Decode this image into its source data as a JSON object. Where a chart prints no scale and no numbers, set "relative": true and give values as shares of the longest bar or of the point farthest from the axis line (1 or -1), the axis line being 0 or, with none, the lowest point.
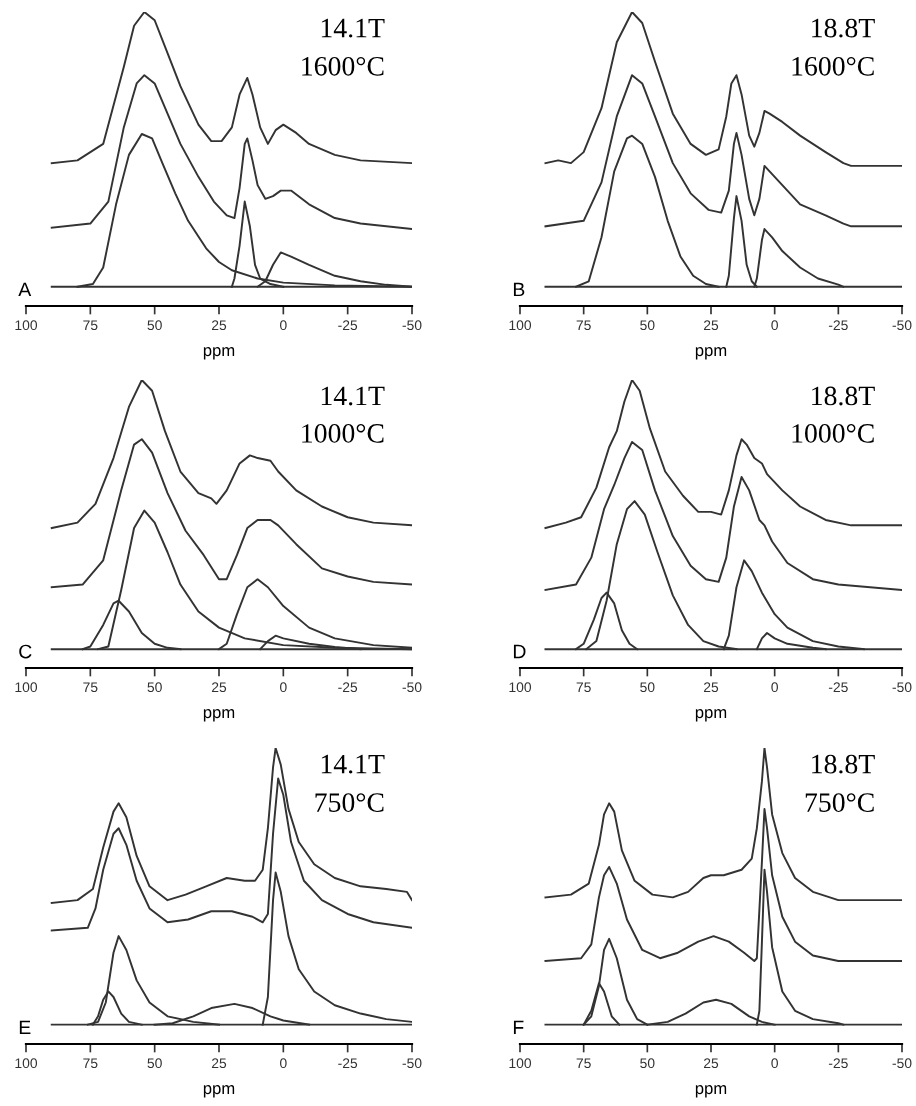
{
  "chart_data": [
    {
      "type": "line",
      "relative": true,
      "xlabel": "ppm",
      "xlim": [
        100,
        -50
      ],
      "xticks": [
        100,
        75,
        50,
        25,
        0,
        -25,
        -50
      ],
      "grid": false,
      "legend": false,
      "marker": "none",
      "line_style": "solid",
      "annotations": [
        "A",
        "14.1T",
        "1600°C"
      ],
      "series": [
        {
          "color": "#333333",
          "x": [
            90,
            80,
            70,
            62,
            58,
            54,
            50,
            45,
            40,
            33,
            28,
            24,
            20,
            17,
            14,
            12,
            9,
            6,
            3,
            0,
            -5,
            -10,
            -20,
            -30,
            -50
          ],
          "values": [
            0.45,
            0.46,
            0.52,
            0.8,
            0.95,
            1.0,
            0.97,
            0.85,
            0.73,
            0.59,
            0.53,
            0.53,
            0.58,
            0.7,
            0.76,
            0.7,
            0.58,
            0.52,
            0.57,
            0.59,
            0.56,
            0.52,
            0.48,
            0.46,
            0.45
          ]
        },
        {
          "color": "#333333",
          "x": [
            90,
            75,
            68,
            62,
            57,
            54,
            50,
            45,
            40,
            33,
            27,
            22,
            19,
            17,
            15,
            14,
            12,
            10,
            7,
            4,
            1,
            -3,
            -10,
            -20,
            -30,
            -50
          ],
          "values": [
            0.215,
            0.23,
            0.31,
            0.58,
            0.74,
            0.77,
            0.74,
            0.63,
            0.52,
            0.4,
            0.31,
            0.26,
            0.25,
            0.36,
            0.52,
            0.54,
            0.46,
            0.37,
            0.32,
            0.33,
            0.35,
            0.35,
            0.3,
            0.25,
            0.23,
            0.21
          ]
        },
        {
          "color": "#333333",
          "x": [
            90,
            -50
          ],
          "values": [
            0,
            0
          ]
        },
        {
          "color": "#333333",
          "x": [
            80,
            74,
            70,
            65,
            60,
            55,
            51,
            47,
            42,
            37,
            30,
            25,
            20,
            10,
            0,
            -20,
            -50
          ],
          "values": [
            0,
            0.01,
            0.07,
            0.3,
            0.48,
            0.556,
            0.54,
            0.45,
            0.34,
            0.24,
            0.14,
            0.09,
            0.06,
            0.03,
            0.015,
            0.005,
            0
          ]
        },
        {
          "color": "#333333",
          "x": [
            20,
            19,
            17,
            15,
            13,
            11,
            9,
            5,
            0
          ],
          "values": [
            0,
            0.03,
            0.15,
            0.31,
            0.22,
            0.08,
            0.03,
            0.01,
            0
          ]
        },
        {
          "color": "#333333",
          "x": [
            10,
            7,
            4,
            1,
            -3,
            -10,
            -20,
            -30,
            -40,
            -50
          ],
          "values": [
            0,
            0.02,
            0.08,
            0.125,
            0.11,
            0.08,
            0.04,
            0.02,
            0.007,
            0
          ]
        }
      ]
    },
    {
      "type": "line",
      "relative": true,
      "xlabel": "ppm",
      "xlim": [
        100,
        -50
      ],
      "xticks": [
        100,
        75,
        50,
        25,
        0,
        -25,
        -50
      ],
      "grid": false,
      "legend": false,
      "marker": "none",
      "line_style": "solid",
      "annotations": [
        "B",
        "18.8T",
        "1600°C"
      ],
      "series": [
        {
          "color": "#333333",
          "x": [
            90,
            85,
            80,
            75,
            68,
            62,
            56,
            52,
            47,
            40,
            33,
            27,
            22,
            19,
            17,
            15,
            13,
            10,
            8,
            6,
            4,
            2,
            -3,
            -10,
            -20,
            -27,
            -30,
            -50
          ],
          "values": [
            0.45,
            0.46,
            0.45,
            0.49,
            0.65,
            0.89,
            1.0,
            0.96,
            0.82,
            0.63,
            0.52,
            0.48,
            0.5,
            0.62,
            0.74,
            0.77,
            0.7,
            0.55,
            0.51,
            0.56,
            0.64,
            0.63,
            0.6,
            0.55,
            0.49,
            0.45,
            0.44,
            0.44
          ]
        },
        {
          "color": "#333333",
          "x": [
            90,
            75,
            68,
            62,
            56,
            52,
            47,
            40,
            33,
            26,
            21,
            18,
            16,
            15,
            13,
            10,
            8,
            6,
            4,
            1,
            -3,
            -10,
            -20,
            -27,
            -30,
            -50
          ],
          "values": [
            0.22,
            0.24,
            0.38,
            0.62,
            0.77,
            0.74,
            0.62,
            0.45,
            0.34,
            0.28,
            0.27,
            0.35,
            0.52,
            0.56,
            0.48,
            0.32,
            0.26,
            0.32,
            0.44,
            0.41,
            0.37,
            0.3,
            0.26,
            0.23,
            0.22,
            0.22
          ]
        },
        {
          "color": "#333333",
          "x": [
            90,
            -50
          ],
          "values": [
            0,
            0
          ]
        },
        {
          "color": "#333333",
          "x": [
            78,
            73,
            68,
            63,
            58,
            56,
            52,
            47,
            42,
            37,
            32,
            27,
            22
          ],
          "values": [
            0,
            0.02,
            0.18,
            0.42,
            0.54,
            0.55,
            0.52,
            0.4,
            0.24,
            0.11,
            0.04,
            0.01,
            0
          ]
        },
        {
          "color": "#333333",
          "x": [
            19,
            18,
            16,
            15,
            13,
            11,
            9,
            7
          ],
          "values": [
            0,
            0.04,
            0.25,
            0.33,
            0.24,
            0.08,
            0.02,
            0
          ]
        },
        {
          "color": "#333333",
          "x": [
            8,
            7,
            5,
            4,
            1,
            -3,
            -10,
            -17,
            -25,
            -27
          ],
          "values": [
            0,
            0.03,
            0.17,
            0.21,
            0.18,
            0.13,
            0.07,
            0.03,
            0.008,
            0
          ]
        }
      ]
    },
    {
      "type": "line",
      "relative": true,
      "xlabel": "ppm",
      "xlim": [
        100,
        -50
      ],
      "xticks": [
        100,
        75,
        50,
        25,
        0,
        -25,
        -50
      ],
      "grid": false,
      "legend": false,
      "marker": "none",
      "line_style": "solid",
      "annotations": [
        "C",
        "14.1T",
        "1000°C"
      ],
      "series": [
        {
          "color": "#333333",
          "x": [
            90,
            80,
            73,
            66,
            60,
            55,
            51,
            46,
            40,
            33,
            28,
            26,
            22,
            17,
            13,
            10,
            5,
            2,
            -5,
            -15,
            -25,
            -35,
            -50
          ],
          "values": [
            0.45,
            0.47,
            0.54,
            0.71,
            0.9,
            1.0,
            0.96,
            0.81,
            0.66,
            0.58,
            0.56,
            0.54,
            0.59,
            0.69,
            0.72,
            0.71,
            0.7,
            0.66,
            0.59,
            0.53,
            0.49,
            0.47,
            0.46
          ]
        },
        {
          "color": "#333333",
          "x": [
            90,
            78,
            70,
            63,
            58,
            55,
            51,
            45,
            38,
            31,
            25,
            22,
            18,
            14,
            10,
            5,
            2,
            -5,
            -15,
            -25,
            -35,
            -50
          ],
          "values": [
            0.23,
            0.24,
            0.33,
            0.59,
            0.76,
            0.78,
            0.73,
            0.58,
            0.44,
            0.35,
            0.26,
            0.26,
            0.35,
            0.45,
            0.48,
            0.48,
            0.46,
            0.39,
            0.3,
            0.27,
            0.25,
            0.24
          ]
        },
        {
          "color": "#333333",
          "x": [
            90,
            -50
          ],
          "values": [
            0,
            0
          ]
        },
        {
          "color": "#333333",
          "x": [
            78,
            75,
            70,
            66,
            64,
            60,
            55,
            50,
            45,
            40
          ],
          "values": [
            0,
            0.01,
            0.09,
            0.17,
            0.18,
            0.14,
            0.06,
            0.02,
            0.005,
            0
          ]
        },
        {
          "color": "#333333",
          "x": [
            72,
            68,
            63,
            58,
            54,
            50,
            45,
            40,
            33,
            25,
            15,
            0,
            -20,
            -50
          ],
          "values": [
            0,
            0.01,
            0.22,
            0.45,
            0.515,
            0.47,
            0.36,
            0.24,
            0.14,
            0.08,
            0.04,
            0.015,
            0.005,
            0
          ]
        },
        {
          "color": "#333333",
          "x": [
            25,
            22,
            18,
            14,
            10,
            6,
            0,
            -10,
            -20,
            -35,
            -50
          ],
          "values": [
            0,
            0.02,
            0.13,
            0.23,
            0.26,
            0.23,
            0.16,
            0.08,
            0.04,
            0.015,
            0.005
          ]
        },
        {
          "color": "#333333",
          "x": [
            9,
            6,
            3,
            0,
            -10,
            -20,
            -30
          ],
          "values": [
            0,
            0.03,
            0.05,
            0.04,
            0.02,
            0.008,
            0
          ]
        }
      ]
    },
    {
      "type": "line",
      "relative": true,
      "xlabel": "ppm",
      "xlim": [
        100,
        -50
      ],
      "xticks": [
        100,
        75,
        50,
        25,
        0,
        -25,
        -50
      ],
      "grid": false,
      "legend": false,
      "marker": "none",
      "line_style": "solid",
      "annotations": [
        "D",
        "18.8T",
        "1000°C"
      ],
      "series": [
        {
          "color": "#333333",
          "x": [
            90,
            82,
            76,
            70,
            65,
            62,
            59,
            56,
            53,
            49,
            43,
            36,
            30,
            25,
            21,
            18,
            15,
            13,
            11,
            8,
            5,
            3,
            -3,
            -10,
            -20,
            -30,
            -50
          ],
          "values": [
            0.45,
            0.47,
            0.49,
            0.6,
            0.75,
            0.81,
            0.92,
            1.0,
            0.96,
            0.82,
            0.66,
            0.57,
            0.51,
            0.51,
            0.5,
            0.59,
            0.72,
            0.78,
            0.76,
            0.71,
            0.69,
            0.65,
            0.59,
            0.53,
            0.48,
            0.46,
            0.46
          ]
        },
        {
          "color": "#333333",
          "x": [
            90,
            78,
            72,
            67,
            63,
            59,
            56,
            52,
            47,
            40,
            33,
            27,
            22,
            19,
            16,
            13,
            10,
            6,
            4,
            1,
            -5,
            -15,
            -25,
            -50
          ],
          "values": [
            0.22,
            0.24,
            0.34,
            0.52,
            0.61,
            0.71,
            0.77,
            0.74,
            0.59,
            0.42,
            0.31,
            0.26,
            0.25,
            0.34,
            0.53,
            0.64,
            0.59,
            0.48,
            0.46,
            0.4,
            0.32,
            0.26,
            0.24,
            0.22
          ]
        },
        {
          "color": "#333333",
          "x": [
            90,
            -50
          ],
          "values": [
            0,
            0
          ]
        },
        {
          "color": "#333333",
          "x": [
            78,
            75,
            71,
            68,
            66,
            63,
            60,
            57,
            54
          ],
          "values": [
            0,
            0.02,
            0.11,
            0.19,
            0.21,
            0.17,
            0.07,
            0.02,
            0
          ]
        },
        {
          "color": "#333333",
          "x": [
            74,
            70,
            66,
            62,
            58,
            55,
            51,
            46,
            40,
            34,
            28,
            22,
            15
          ],
          "values": [
            0,
            0.03,
            0.18,
            0.39,
            0.52,
            0.55,
            0.5,
            0.36,
            0.2,
            0.09,
            0.03,
            0.01,
            0
          ]
        },
        {
          "color": "#333333",
          "x": [
            20,
            18,
            15,
            12,
            9,
            5,
            0,
            -5,
            -15,
            -25,
            -35
          ],
          "values": [
            0,
            0.05,
            0.23,
            0.33,
            0.29,
            0.21,
            0.13,
            0.08,
            0.03,
            0.01,
            0
          ]
        },
        {
          "color": "#333333",
          "x": [
            7,
            5,
            3,
            0,
            -5,
            -15,
            -20
          ],
          "values": [
            0,
            0.04,
            0.06,
            0.04,
            0.02,
            0.005,
            0
          ]
        }
      ]
    },
    {
      "type": "line",
      "relative": true,
      "xlabel": "ppm",
      "xlim": [
        100,
        -50
      ],
      "xticks": [
        100,
        75,
        50,
        25,
        0,
        -25,
        -50
      ],
      "grid": false,
      "legend": false,
      "marker": "none",
      "line_style": "solid",
      "annotations": [
        "E",
        "14.1T",
        "750°C"
      ],
      "series": [
        {
          "color": "#333333",
          "x": [
            90,
            80,
            74,
            70,
            66,
            64,
            61,
            57,
            52,
            45,
            38,
            30,
            22,
            15,
            11,
            8,
            6,
            4,
            3,
            1,
            -2,
            -6,
            -12,
            -20,
            -30,
            -40,
            -48,
            -50
          ],
          "values": [
            0.44,
            0.45,
            0.49,
            0.64,
            0.77,
            0.8,
            0.75,
            0.61,
            0.5,
            0.45,
            0.47,
            0.5,
            0.53,
            0.52,
            0.52,
            0.56,
            0.71,
            0.93,
            1.0,
            0.94,
            0.78,
            0.66,
            0.58,
            0.53,
            0.5,
            0.49,
            0.48,
            0.45
          ]
        },
        {
          "color": "#333333",
          "x": [
            90,
            76,
            73,
            70,
            66,
            64,
            61,
            57,
            52,
            45,
            37,
            28,
            20,
            12,
            8,
            6,
            4,
            2,
            0,
            -3,
            -8,
            -15,
            -25,
            -35,
            -50
          ],
          "values": [
            0.34,
            0.35,
            0.42,
            0.56,
            0.69,
            0.71,
            0.65,
            0.52,
            0.42,
            0.37,
            0.38,
            0.41,
            0.41,
            0.39,
            0.37,
            0.4,
            0.69,
            0.89,
            0.83,
            0.66,
            0.52,
            0.45,
            0.4,
            0.37,
            0.35
          ]
        },
        {
          "color": "#333333",
          "x": [
            90,
            -50
          ],
          "values": [
            0,
            0
          ]
        },
        {
          "color": "#333333",
          "x": [
            74,
            72,
            70,
            68,
            66,
            63,
            60,
            55
          ],
          "values": [
            0,
            0.03,
            0.09,
            0.12,
            0.1,
            0.04,
            0.01,
            0
          ]
        },
        {
          "color": "#333333",
          "x": [
            76,
            72,
            69,
            66,
            64,
            61,
            57,
            52,
            45,
            35,
            25
          ],
          "values": [
            0,
            0.01,
            0.08,
            0.26,
            0.32,
            0.27,
            0.16,
            0.08,
            0.03,
            0.01,
            0
          ]
        },
        {
          "color": "#333333",
          "x": [
            50,
            43,
            35,
            28,
            19,
            12,
            5,
            0,
            -10
          ],
          "values": [
            0,
            0.005,
            0.03,
            0.06,
            0.075,
            0.06,
            0.03,
            0.015,
            0
          ]
        },
        {
          "color": "#333333",
          "x": [
            8,
            6,
            4,
            3,
            1,
            -2,
            -6,
            -12,
            -20,
            -30,
            -40,
            -50
          ],
          "values": [
            0,
            0.1,
            0.45,
            0.55,
            0.48,
            0.32,
            0.2,
            0.12,
            0.07,
            0.04,
            0.02,
            0.01
          ]
        }
      ]
    },
    {
      "type": "line",
      "relative": true,
      "xlabel": "ppm",
      "xlim": [
        100,
        -50
      ],
      "xticks": [
        100,
        75,
        50,
        25,
        0,
        -25,
        -50
      ],
      "grid": false,
      "legend": false,
      "marker": "none",
      "line_style": "solid",
      "annotations": [
        "F",
        "18.8T",
        "750°C"
      ],
      "series": [
        {
          "color": "#333333",
          "x": [
            90,
            80,
            73,
            69,
            67,
            65,
            63,
            60,
            55,
            48,
            40,
            34,
            28,
            25,
            20,
            13,
            9,
            7,
            5,
            4,
            3,
            1,
            -3,
            -8,
            -15,
            -25,
            -50
          ],
          "values": [
            0.46,
            0.47,
            0.51,
            0.65,
            0.76,
            0.8,
            0.77,
            0.63,
            0.52,
            0.47,
            0.46,
            0.48,
            0.53,
            0.54,
            0.54,
            0.56,
            0.6,
            0.71,
            0.88,
            1.0,
            0.93,
            0.76,
            0.62,
            0.53,
            0.48,
            0.45,
            0.45
          ]
        },
        {
          "color": "#333333",
          "x": [
            90,
            76,
            72,
            69,
            67,
            65,
            62,
            58,
            52,
            45,
            38,
            30,
            24,
            18,
            12,
            8,
            7,
            5,
            4,
            3,
            1,
            -3,
            -8,
            -15,
            -25,
            -50
          ],
          "values": [
            0.23,
            0.24,
            0.29,
            0.46,
            0.54,
            0.57,
            0.51,
            0.38,
            0.27,
            0.24,
            0.26,
            0.3,
            0.32,
            0.3,
            0.26,
            0.23,
            0.24,
            0.59,
            0.78,
            0.71,
            0.54,
            0.39,
            0.3,
            0.25,
            0.23,
            0.23
          ]
        },
        {
          "color": "#333333",
          "x": [
            90,
            -50
          ],
          "values": [
            0,
            0
          ]
        },
        {
          "color": "#333333",
          "x": [
            75,
            72,
            69,
            67,
            64,
            61
          ],
          "values": [
            0,
            0.05,
            0.15,
            0.12,
            0.03,
            0
          ]
        },
        {
          "color": "#333333",
          "x": [
            75,
            72,
            69,
            67,
            65,
            62,
            58,
            54,
            50
          ],
          "values": [
            0,
            0.03,
            0.14,
            0.27,
            0.31,
            0.24,
            0.09,
            0.02,
            0
          ]
        },
        {
          "color": "#333333",
          "x": [
            50,
            42,
            35,
            28,
            23,
            17,
            10,
            5,
            0
          ],
          "values": [
            0,
            0.01,
            0.04,
            0.08,
            0.09,
            0.075,
            0.03,
            0.01,
            0
          ]
        },
        {
          "color": "#333333",
          "x": [
            7,
            6,
            5,
            4,
            3,
            1,
            -3,
            -8,
            -15,
            -25,
            -27
          ],
          "values": [
            0,
            0.05,
            0.3,
            0.56,
            0.48,
            0.28,
            0.12,
            0.05,
            0.02,
            0.005,
            0
          ]
        }
      ]
    }
  ]
}
